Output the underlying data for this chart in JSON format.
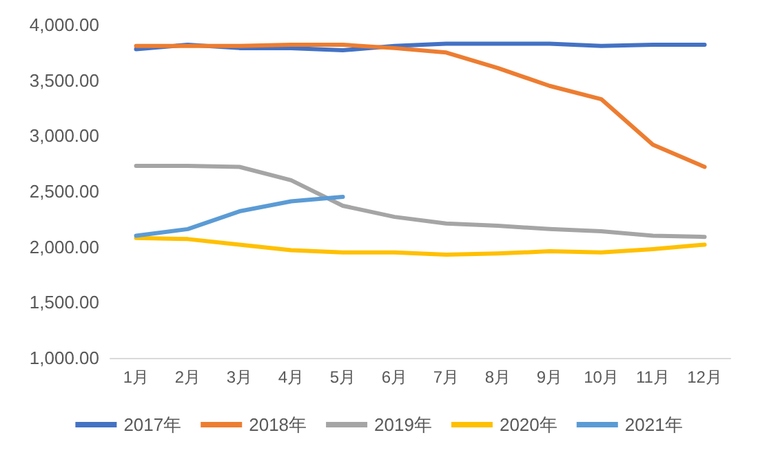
{
  "chart_data": {
    "type": "line",
    "categories": [
      "1月",
      "2月",
      "3月",
      "4月",
      "5月",
      "6月",
      "7月",
      "8月",
      "9月",
      "10月",
      "11月",
      "12月"
    ],
    "series": [
      {
        "name": "2017年",
        "color": "#4472c4",
        "values": [
          3780,
          3820,
          3790,
          3790,
          3770,
          3810,
          3830,
          3830,
          3830,
          3810,
          3820,
          3820
        ]
      },
      {
        "name": "2018年",
        "color": "#ed7d31",
        "values": [
          3810,
          3810,
          3810,
          3820,
          3820,
          3790,
          3750,
          3610,
          3450,
          3330,
          2920,
          2720
        ]
      },
      {
        "name": "2019年",
        "color": "#a5a5a5",
        "values": [
          2730,
          2730,
          2720,
          2600,
          2370,
          2270,
          2210,
          2190,
          2160,
          2140,
          2100,
          2090
        ]
      },
      {
        "name": "2020年",
        "color": "#ffc000",
        "values": [
          2080,
          2070,
          2020,
          1970,
          1950,
          1950,
          1930,
          1940,
          1960,
          1950,
          1980,
          2020
        ]
      },
      {
        "name": "2021年",
        "color": "#5b9bd5",
        "values": [
          2100,
          2160,
          2320,
          2410,
          2450,
          null,
          null,
          null,
          null,
          null,
          null,
          null
        ]
      }
    ],
    "ylim": [
      1000,
      4000
    ],
    "yticks": [
      {
        "value": 1000,
        "label": "1,000.00"
      },
      {
        "value": 1500,
        "label": "1,500.00"
      },
      {
        "value": 2000,
        "label": "2,000.00"
      },
      {
        "value": 2500,
        "label": "2,500.00"
      },
      {
        "value": 3000,
        "label": "3,000.00"
      },
      {
        "value": 3500,
        "label": "3,500.00"
      },
      {
        "value": 4000,
        "label": "4,000.00"
      }
    ],
    "grid": false,
    "legend": "bottom",
    "marker": "none",
    "line_style": "solid"
  }
}
